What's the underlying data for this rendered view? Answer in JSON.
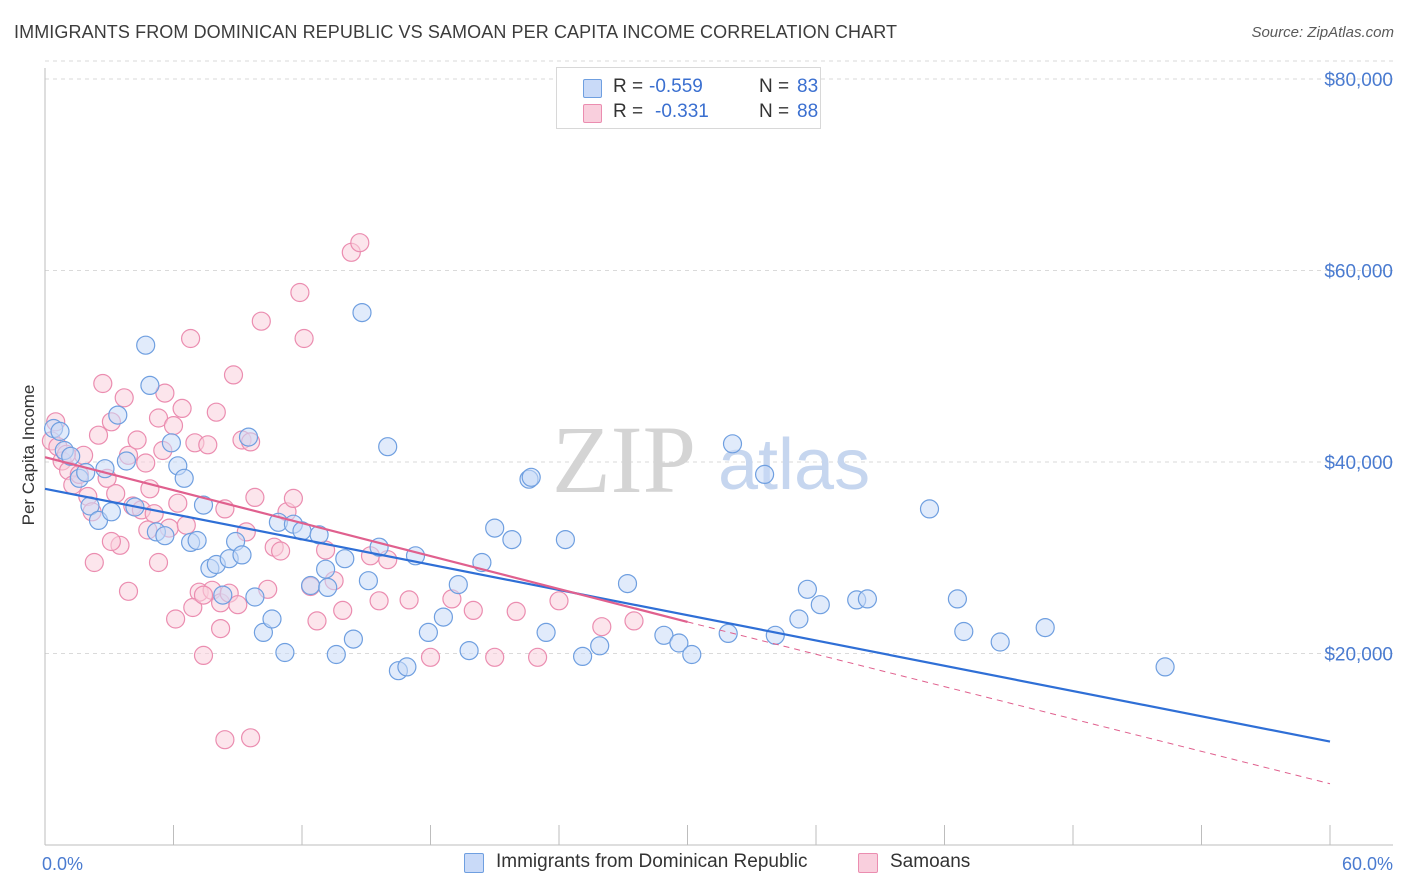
{
  "title": "IMMIGRANTS FROM DOMINICAN REPUBLIC VS SAMOAN PER CAPITA INCOME CORRELATION CHART",
  "source": "Source: ZipAtlas.com",
  "watermark": {
    "zip": "ZIP",
    "atlas": "atlas"
  },
  "legend": {
    "rows": [
      {
        "r_label": "R =",
        "r_value": "-0.559",
        "n_label": "N =",
        "n_value": "83"
      },
      {
        "r_label": "R =",
        "r_value": "-0.331",
        "n_label": "N =",
        "n_value": "88"
      }
    ]
  },
  "bottom_legend": {
    "series1": "Immigrants from Dominican Republic",
    "series2": "Samoans"
  },
  "colors": {
    "blue_fill": "#c9daf8",
    "blue_stroke": "#6f9fe0",
    "blue_line": "#2f6fd6",
    "pink_fill": "#f9cfdd",
    "pink_stroke": "#eb8db0",
    "pink_line": "#e0608e",
    "grid": "#dadada",
    "axis_text": "#4a7bd0"
  },
  "chart_data": {
    "type": "scatter",
    "title": "IMMIGRANTS FROM DOMINICAN REPUBLIC VS SAMOAN PER CAPITA INCOME CORRELATION CHART",
    "xlabel": "",
    "ylabel": "Per Capita Income",
    "xlim": [
      0,
      60
    ],
    "ylim": [
      0,
      85000
    ],
    "x_tick_labels": [
      "0.0%",
      "60.0%"
    ],
    "y_ticks": [
      20000,
      40000,
      60000,
      80000
    ],
    "y_tick_labels": [
      "$20,000",
      "$40,000",
      "$60,000",
      "$80,000"
    ],
    "grid": true,
    "legend_position": "top-center",
    "series": [
      {
        "name": "Immigrants from Dominican Republic",
        "r": -0.559,
        "n": 83,
        "trend": {
          "x": [
            0,
            60
          ],
          "y": [
            37200,
            10800
          ]
        },
        "points": [
          [
            0.4,
            43500
          ],
          [
            0.7,
            43200
          ],
          [
            0.9,
            41200
          ],
          [
            1.2,
            40600
          ],
          [
            1.6,
            38300
          ],
          [
            1.9,
            38900
          ],
          [
            2.1,
            35400
          ],
          [
            2.5,
            33900
          ],
          [
            2.8,
            39300
          ],
          [
            3.1,
            34800
          ],
          [
            3.4,
            44900
          ],
          [
            3.8,
            40100
          ],
          [
            4.2,
            35300
          ],
          [
            4.7,
            52200
          ],
          [
            4.9,
            48000
          ],
          [
            5.2,
            32700
          ],
          [
            5.6,
            32300
          ],
          [
            5.9,
            42000
          ],
          [
            6.2,
            39600
          ],
          [
            6.5,
            38300
          ],
          [
            6.8,
            31600
          ],
          [
            7.1,
            31800
          ],
          [
            7.4,
            35500
          ],
          [
            7.7,
            28900
          ],
          [
            8.0,
            29300
          ],
          [
            8.3,
            26100
          ],
          [
            8.6,
            29900
          ],
          [
            8.9,
            31700
          ],
          [
            9.2,
            30300
          ],
          [
            9.5,
            42600
          ],
          [
            9.8,
            25900
          ],
          [
            10.2,
            22200
          ],
          [
            10.6,
            23600
          ],
          [
            10.9,
            33700
          ],
          [
            11.2,
            20100
          ],
          [
            11.6,
            33500
          ],
          [
            12.0,
            32800
          ],
          [
            12.4,
            27100
          ],
          [
            12.8,
            32400
          ],
          [
            13.1,
            28800
          ],
          [
            13.6,
            19900
          ],
          [
            14.0,
            29900
          ],
          [
            14.4,
            21500
          ],
          [
            14.8,
            55600
          ],
          [
            15.1,
            27600
          ],
          [
            15.6,
            31100
          ],
          [
            16.0,
            41600
          ],
          [
            16.5,
            18200
          ],
          [
            16.9,
            18600
          ],
          [
            17.3,
            30200
          ],
          [
            17.9,
            22200
          ],
          [
            18.6,
            23800
          ],
          [
            19.3,
            27200
          ],
          [
            19.8,
            20300
          ],
          [
            20.4,
            29500
          ],
          [
            21.0,
            33100
          ],
          [
            21.8,
            31900
          ],
          [
            22.6,
            38200
          ],
          [
            23.4,
            22200
          ],
          [
            24.3,
            31900
          ],
          [
            25.1,
            19700
          ],
          [
            25.9,
            20800
          ],
          [
            27.2,
            27300
          ],
          [
            28.9,
            21900
          ],
          [
            29.6,
            21100
          ],
          [
            30.2,
            19900
          ],
          [
            31.9,
            22100
          ],
          [
            32.1,
            41900
          ],
          [
            33.6,
            38700
          ],
          [
            34.1,
            21900
          ],
          [
            35.2,
            23600
          ],
          [
            35.6,
            26700
          ],
          [
            36.2,
            25100
          ],
          [
            37.9,
            25600
          ],
          [
            38.4,
            25700
          ],
          [
            41.3,
            35100
          ],
          [
            42.6,
            25700
          ],
          [
            42.9,
            22300
          ],
          [
            44.6,
            21200
          ],
          [
            46.7,
            22700
          ],
          [
            52.3,
            18600
          ],
          [
            22.7,
            38400
          ],
          [
            13.2,
            26900
          ]
        ]
      },
      {
        "name": "Samoans",
        "r": -0.331,
        "n": 88,
        "trend": {
          "x": [
            0,
            30
          ],
          "y": [
            40500,
            23300
          ]
        },
        "trend_dashed": {
          "x": [
            30,
            60
          ],
          "y": [
            23300,
            6400
          ]
        },
        "points": [
          [
            0.3,
            42200
          ],
          [
            0.6,
            41600
          ],
          [
            0.8,
            40100
          ],
          [
            1.1,
            39100
          ],
          [
            1.3,
            37600
          ],
          [
            1.6,
            38700
          ],
          [
            1.8,
            40700
          ],
          [
            2.0,
            36400
          ],
          [
            2.2,
            34800
          ],
          [
            2.5,
            42800
          ],
          [
            2.7,
            48200
          ],
          [
            2.9,
            38300
          ],
          [
            3.1,
            44200
          ],
          [
            3.3,
            36700
          ],
          [
            3.5,
            31300
          ],
          [
            3.7,
            46700
          ],
          [
            3.9,
            40700
          ],
          [
            4.1,
            35400
          ],
          [
            4.3,
            42300
          ],
          [
            4.5,
            35000
          ],
          [
            4.7,
            39900
          ],
          [
            4.9,
            37200
          ],
          [
            5.1,
            34600
          ],
          [
            5.3,
            44600
          ],
          [
            5.5,
            41200
          ],
          [
            5.6,
            47200
          ],
          [
            5.8,
            33100
          ],
          [
            6.0,
            43800
          ],
          [
            6.2,
            35700
          ],
          [
            6.4,
            45600
          ],
          [
            6.6,
            33400
          ],
          [
            6.8,
            52900
          ],
          [
            7.0,
            42000
          ],
          [
            7.2,
            26400
          ],
          [
            7.4,
            19800
          ],
          [
            7.6,
            41800
          ],
          [
            7.8,
            26600
          ],
          [
            8.0,
            45200
          ],
          [
            8.2,
            25300
          ],
          [
            8.4,
            35100
          ],
          [
            8.6,
            26300
          ],
          [
            8.8,
            49100
          ],
          [
            9.0,
            25100
          ],
          [
            9.2,
            42300
          ],
          [
            9.4,
            32700
          ],
          [
            9.6,
            42100
          ],
          [
            9.8,
            36300
          ],
          [
            10.1,
            54700
          ],
          [
            10.4,
            26700
          ],
          [
            10.7,
            31100
          ],
          [
            11.0,
            30700
          ],
          [
            11.3,
            34800
          ],
          [
            11.6,
            36200
          ],
          [
            11.9,
            57700
          ],
          [
            12.1,
            52900
          ],
          [
            12.4,
            27000
          ],
          [
            12.7,
            23400
          ],
          [
            13.1,
            30800
          ],
          [
            13.5,
            27600
          ],
          [
            13.9,
            24500
          ],
          [
            14.3,
            61900
          ],
          [
            14.7,
            62900
          ],
          [
            15.2,
            30200
          ],
          [
            15.6,
            25500
          ],
          [
            16.0,
            29800
          ],
          [
            17.0,
            25600
          ],
          [
            18.0,
            19600
          ],
          [
            19.0,
            25700
          ],
          [
            20.0,
            24500
          ],
          [
            21.0,
            19600
          ],
          [
            22.0,
            24400
          ],
          [
            23.0,
            19600
          ],
          [
            24.0,
            25500
          ],
          [
            26.0,
            22800
          ],
          [
            27.5,
            23400
          ],
          [
            9.6,
            11200
          ],
          [
            8.4,
            11000
          ],
          [
            2.3,
            29500
          ],
          [
            3.1,
            31700
          ],
          [
            3.9,
            26500
          ],
          [
            4.8,
            32900
          ],
          [
            5.3,
            29500
          ],
          [
            6.1,
            23600
          ],
          [
            6.9,
            24800
          ],
          [
            7.4,
            26100
          ],
          [
            8.2,
            22600
          ],
          [
            0.5,
            44200
          ],
          [
            1.0,
            40800
          ]
        ]
      }
    ]
  }
}
